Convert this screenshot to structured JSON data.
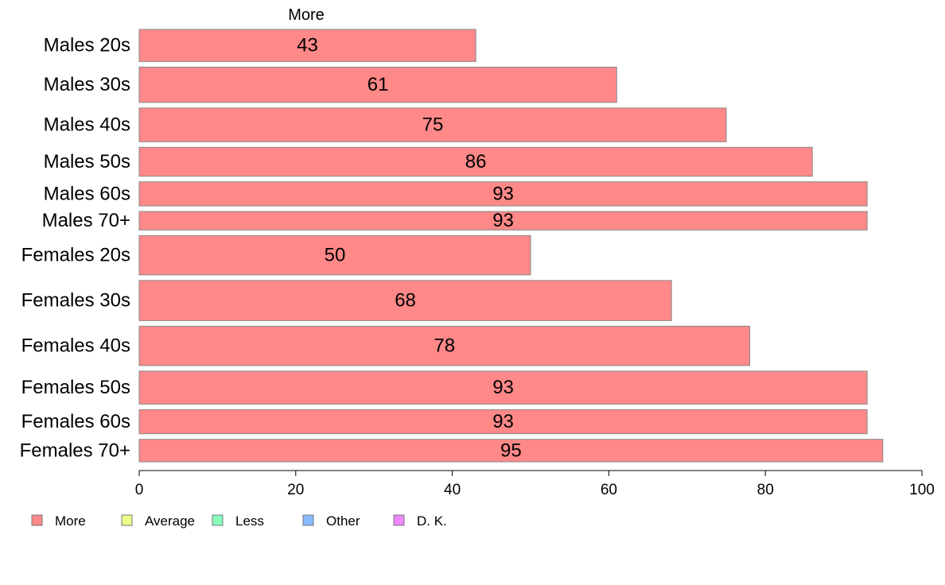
{
  "chart_data": {
    "type": "bar",
    "orientation": "horizontal",
    "series_label_top": "More",
    "categories": [
      "Males 20s",
      "Males 30s",
      "Males 40s",
      "Males 50s",
      "Males 60s",
      "Males 70+",
      "Females 20s",
      "Females 30s",
      "Females 40s",
      "Females 50s",
      "Females 60s",
      "Females 70+"
    ],
    "category_weights": [
      40,
      44,
      42,
      36,
      30,
      23,
      49,
      50,
      49,
      41,
      30,
      28
    ],
    "series": [
      {
        "name": "More",
        "values": [
          43,
          61,
          75,
          86,
          93,
          93,
          50,
          68,
          78,
          93,
          93,
          95
        ],
        "color": "#FF8888"
      }
    ],
    "data_labels": [
      "43",
      "61",
      "75",
      "86",
      "93",
      "93",
      "50",
      "68",
      "78",
      "93",
      "93",
      "95"
    ],
    "xlim": [
      0,
      100
    ],
    "xticks": [
      0,
      20,
      40,
      60,
      80,
      100
    ],
    "xtick_labels": [
      "0",
      "20",
      "40",
      "60",
      "80",
      "100"
    ],
    "grid": false,
    "legend": {
      "position": "bottom-left",
      "entries": [
        {
          "label": "More",
          "color": "#FF8888"
        },
        {
          "label": "Average",
          "color": "#EEFF88"
        },
        {
          "label": "Less",
          "color": "#88FFBB"
        },
        {
          "label": "Other",
          "color": "#88BBFF"
        },
        {
          "label": "D. K.",
          "color": "#EE88FF"
        }
      ]
    }
  }
}
